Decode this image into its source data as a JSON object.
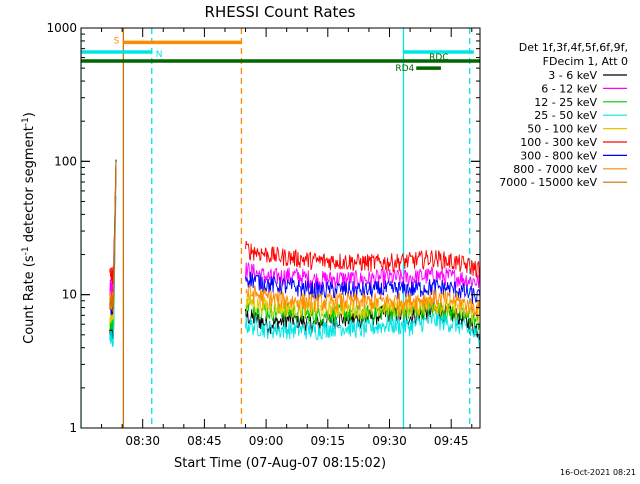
{
  "chart_data": {
    "type": "line",
    "title": "RHESSI Count Rates",
    "xlabel": "Start Time (07-Aug-07 08:15:02)",
    "ylabel_main": "Count Rate (s",
    "ylabel_sup1": "-1",
    "ylabel_mid": " detector segment",
    "ylabel_sup2": "-1",
    "ylabel_end": ")",
    "yscale": "log",
    "ylim": [
      1,
      1000
    ],
    "xlim_minutes": [
      0,
      97
    ],
    "x_ticks": [
      {
        "m": 15,
        "label": "08:30"
      },
      {
        "m": 30,
        "label": "08:45"
      },
      {
        "m": 45,
        "label": "09:00"
      },
      {
        "m": 60,
        "label": "09:15"
      },
      {
        "m": 75,
        "label": "09:30"
      },
      {
        "m": 90,
        "label": "09:45"
      }
    ],
    "y_ticks": [
      {
        "v": 1,
        "label": "1"
      },
      {
        "v": 10,
        "label": "10"
      },
      {
        "v": 100,
        "label": "100"
      },
      {
        "v": 1000,
        "label": "1000"
      }
    ],
    "legend_header": [
      "Det 1f,3f,4f,5f,6f,9f,",
      "FDecim 1, Att 0"
    ],
    "series": [
      {
        "name": "3 - 6 keV",
        "color": "#000000",
        "seg1": {
          "start": 7,
          "end": 8.5,
          "base": 5.2
        },
        "seg2": {
          "start": 40,
          "end": 97,
          "values": [
            7.0,
            6.0,
            6.6,
            6.0,
            6.7,
            6.5,
            7.3,
            6.8,
            7.7,
            7.0,
            5.3
          ]
        }
      },
      {
        "name": "6 - 12 keV",
        "color": "#ff00ff",
        "seg1": {
          "start": 7,
          "end": 8.5,
          "base": 11.5
        },
        "seg2": {
          "start": 40,
          "end": 97,
          "values": [
            15.5,
            13.5,
            14.0,
            13.0,
            13.2,
            13.0,
            13.5,
            13.4,
            14.0,
            13.5,
            12.5
          ]
        }
      },
      {
        "name": "12 - 25 keV",
        "color": "#00cc00",
        "seg1": {
          "start": 7,
          "end": 8.5,
          "base": 6.5
        },
        "seg2": {
          "start": 40,
          "end": 97,
          "values": [
            8.5,
            7.5,
            7.5,
            7.0,
            7.3,
            7.2,
            7.6,
            7.3,
            8.0,
            7.2,
            6.2
          ]
        }
      },
      {
        "name": "25 - 50 keV",
        "color": "#00e5e5",
        "seg1": {
          "start": 7,
          "end": 8.5,
          "base": 4.6
        },
        "seg2": {
          "start": 40,
          "end": 97,
          "values": [
            6.0,
            5.5,
            5.5,
            5.4,
            5.8,
            5.5,
            6.0,
            5.8,
            6.5,
            6.0,
            4.8
          ]
        }
      },
      {
        "name": "50 - 100 keV",
        "color": "#e5c800",
        "seg1": {
          "start": 7,
          "end": 8.5,
          "base": 7.0
        },
        "seg2": {
          "start": 40,
          "end": 97,
          "values": [
            9.0,
            8.2,
            8.0,
            7.8,
            8.0,
            7.8,
            8.0,
            8.0,
            8.5,
            7.8,
            7.0
          ]
        }
      },
      {
        "name": "100 - 300 keV",
        "color": "#ff0000",
        "seg1": {
          "start": 7,
          "end": 8.5,
          "base": 14.0
        },
        "seg2": {
          "start": 40,
          "end": 97,
          "values": [
            22.0,
            20.0,
            19.0,
            18.0,
            18.0,
            17.5,
            17.5,
            18.0,
            19.0,
            17.5,
            15.5
          ]
        }
      },
      {
        "name": "300 - 800 keV",
        "color": "#0000ff",
        "seg1": {
          "start": 7,
          "end": 8.5,
          "base": 8.0
        },
        "seg2": {
          "start": 40,
          "end": 97,
          "values": [
            13.5,
            12.0,
            11.5,
            10.8,
            11.0,
            10.8,
            11.0,
            11.0,
            11.5,
            11.0,
            9.5
          ]
        }
      },
      {
        "name": "800 - 7000 keV",
        "color": "#ff8c00",
        "seg1": {
          "start": 7,
          "end": 8.5,
          "base": 9.0
        },
        "seg2": {
          "start": 40,
          "end": 97,
          "values": [
            10.5,
            9.5,
            9.0,
            8.8,
            9.0,
            8.8,
            9.0,
            9.0,
            9.5,
            9.0,
            7.8
          ]
        }
      },
      {
        "name": "7000 - 15000 keV",
        "color": "#cc7000",
        "seg1": {
          "start": 7,
          "end": 8.5,
          "base": 9.0
        },
        "seg2": null
      }
    ],
    "vlines": [
      {
        "m": 0,
        "color": "#00e5e5",
        "dash": false
      },
      {
        "m": 10.3,
        "color": "#cc7000",
        "dash": false
      },
      {
        "m": 17.2,
        "color": "#00e5e5",
        "dash": true
      },
      {
        "m": 39.0,
        "color": "#ff8c00",
        "dash": true
      },
      {
        "m": 78.4,
        "color": "#00e5e5",
        "dash": false
      },
      {
        "m": 94.5,
        "color": "#00e5e5",
        "dash": true
      }
    ],
    "flag_bars": [
      {
        "label": "S",
        "color": "#ff8c00",
        "from": 10.3,
        "to": 39.0,
        "y_value": 780,
        "label_side": "left"
      },
      {
        "label": "N",
        "color": "#00e5e5",
        "from": 0,
        "to": 17.2,
        "y_value": 660,
        "label_side": "right"
      },
      {
        "label": "",
        "color": "#00e5e5",
        "from": 78.4,
        "to": 95.5,
        "y_value": 660,
        "label_side": "none"
      },
      {
        "label": "RDC",
        "color": "#006600",
        "from": 0,
        "to": 97,
        "y_value": 565,
        "label_side": "right-end"
      },
      {
        "label": "RD4",
        "color": "#006600",
        "from": 81.5,
        "to": 87.5,
        "y_value": 500,
        "label_side": "left"
      }
    ],
    "flag_label_rdc": "RDC",
    "footer_date": "16-Oct-2021 08:21",
    "grid": false,
    "legend_position": "right"
  }
}
